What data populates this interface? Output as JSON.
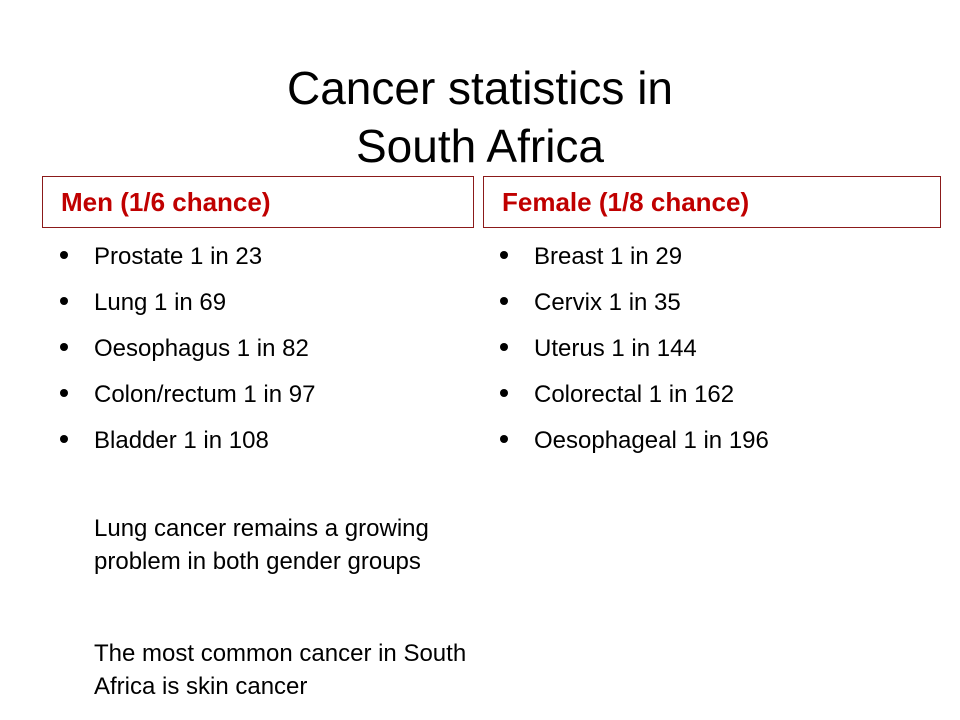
{
  "title": {
    "line1": "Cancer statistics in",
    "line2": "South Africa"
  },
  "men": {
    "header": "Men (1/6 chance)",
    "items": [
      {
        "label": "Prostate 1 in 23"
      },
      {
        "label": "Lung 1 in 69"
      },
      {
        "label": "Oesophagus 1 in 82"
      },
      {
        "label": "Colon/rectum 1 in 97"
      },
      {
        "label": "Bladder 1 in 108"
      }
    ],
    "notes": [
      "Lung cancer remains a growing problem in both gender groups",
      "The most common cancer in South Africa is skin cancer"
    ]
  },
  "female": {
    "header": "Female (1/8 chance)",
    "items": [
      {
        "label": "Breast 1 in 29"
      },
      {
        "label": "Cervix 1 in 35"
      },
      {
        "label": "Uterus 1 in 144"
      },
      {
        "label": "Colorectal 1 in 162"
      },
      {
        "label": "Oesophageal 1 in 196"
      }
    ]
  },
  "colors": {
    "header_text": "#c00000",
    "header_border": "#8b1a1a",
    "body_text": "#000000",
    "background": "#ffffff"
  }
}
